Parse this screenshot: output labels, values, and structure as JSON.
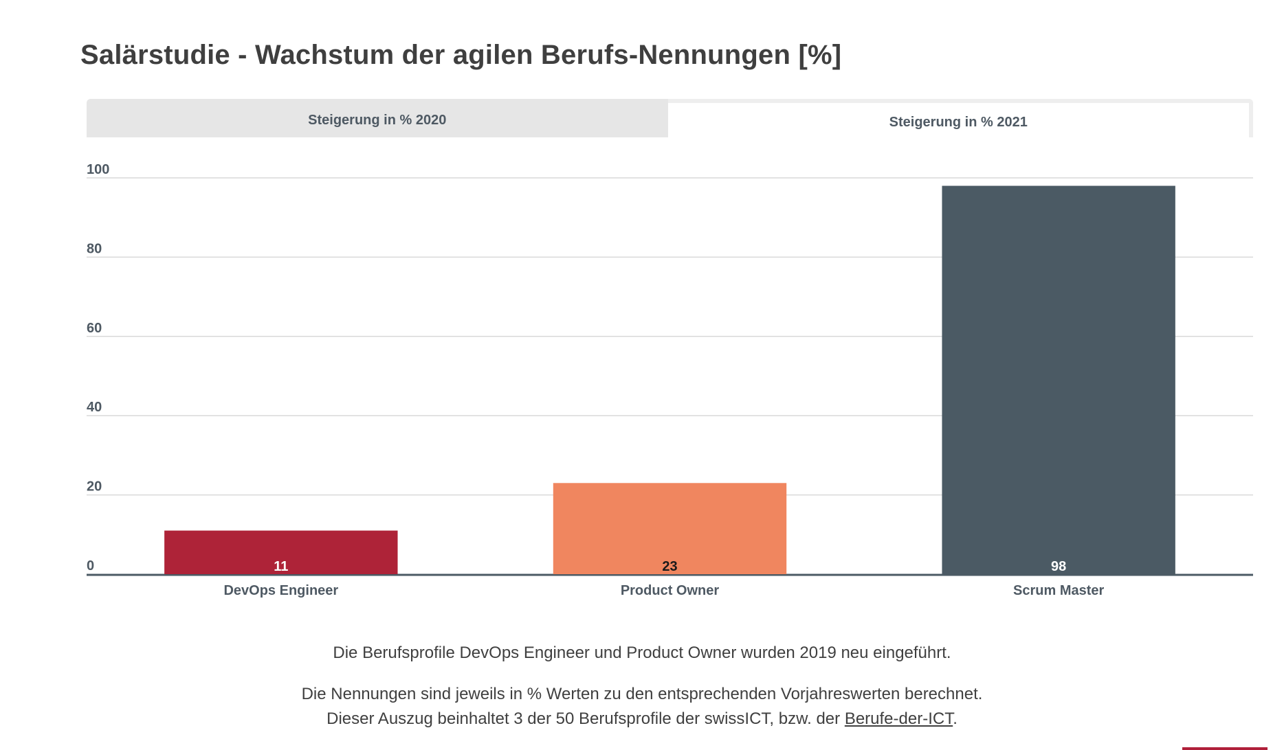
{
  "title": "Salärstudie - Wachstum der agilen Berufs-Nennungen [%]",
  "tabs": [
    {
      "label": "Steigerung in % 2020",
      "active": false
    },
    {
      "label": "Steigerung in % 2021",
      "active": true
    }
  ],
  "chart_data": {
    "type": "bar",
    "categories": [
      "DevOps Engineer",
      "Product Owner",
      "Scrum Master"
    ],
    "values": [
      11,
      23,
      98
    ],
    "colors": [
      "#ae2338",
      "#f0865f",
      "#4b5a64"
    ],
    "data_label_colors": [
      "#ffffff",
      "#1a1a1a",
      "#ffffff"
    ],
    "ylim": [
      0,
      100
    ],
    "yticks": [
      0,
      20,
      40,
      60,
      80,
      100
    ],
    "grid": true,
    "title": "",
    "xlabel": "",
    "ylabel": ""
  },
  "notes": {
    "line1": "Die Berufsprofile DevOps Engineer und Product Owner wurden 2019 neu eingeführt.",
    "line2": "Die Nennungen sind jeweils in % Werten zu den  entsprechenden Vorjahreswerten berechnet.",
    "line3_prefix": "Dieser Auszug beinhaltet 3 der 50 Berufsprofile der swissICT, bzw. der ",
    "line3_link": "Berufe-der-ICT",
    "line3_suffix": "."
  }
}
